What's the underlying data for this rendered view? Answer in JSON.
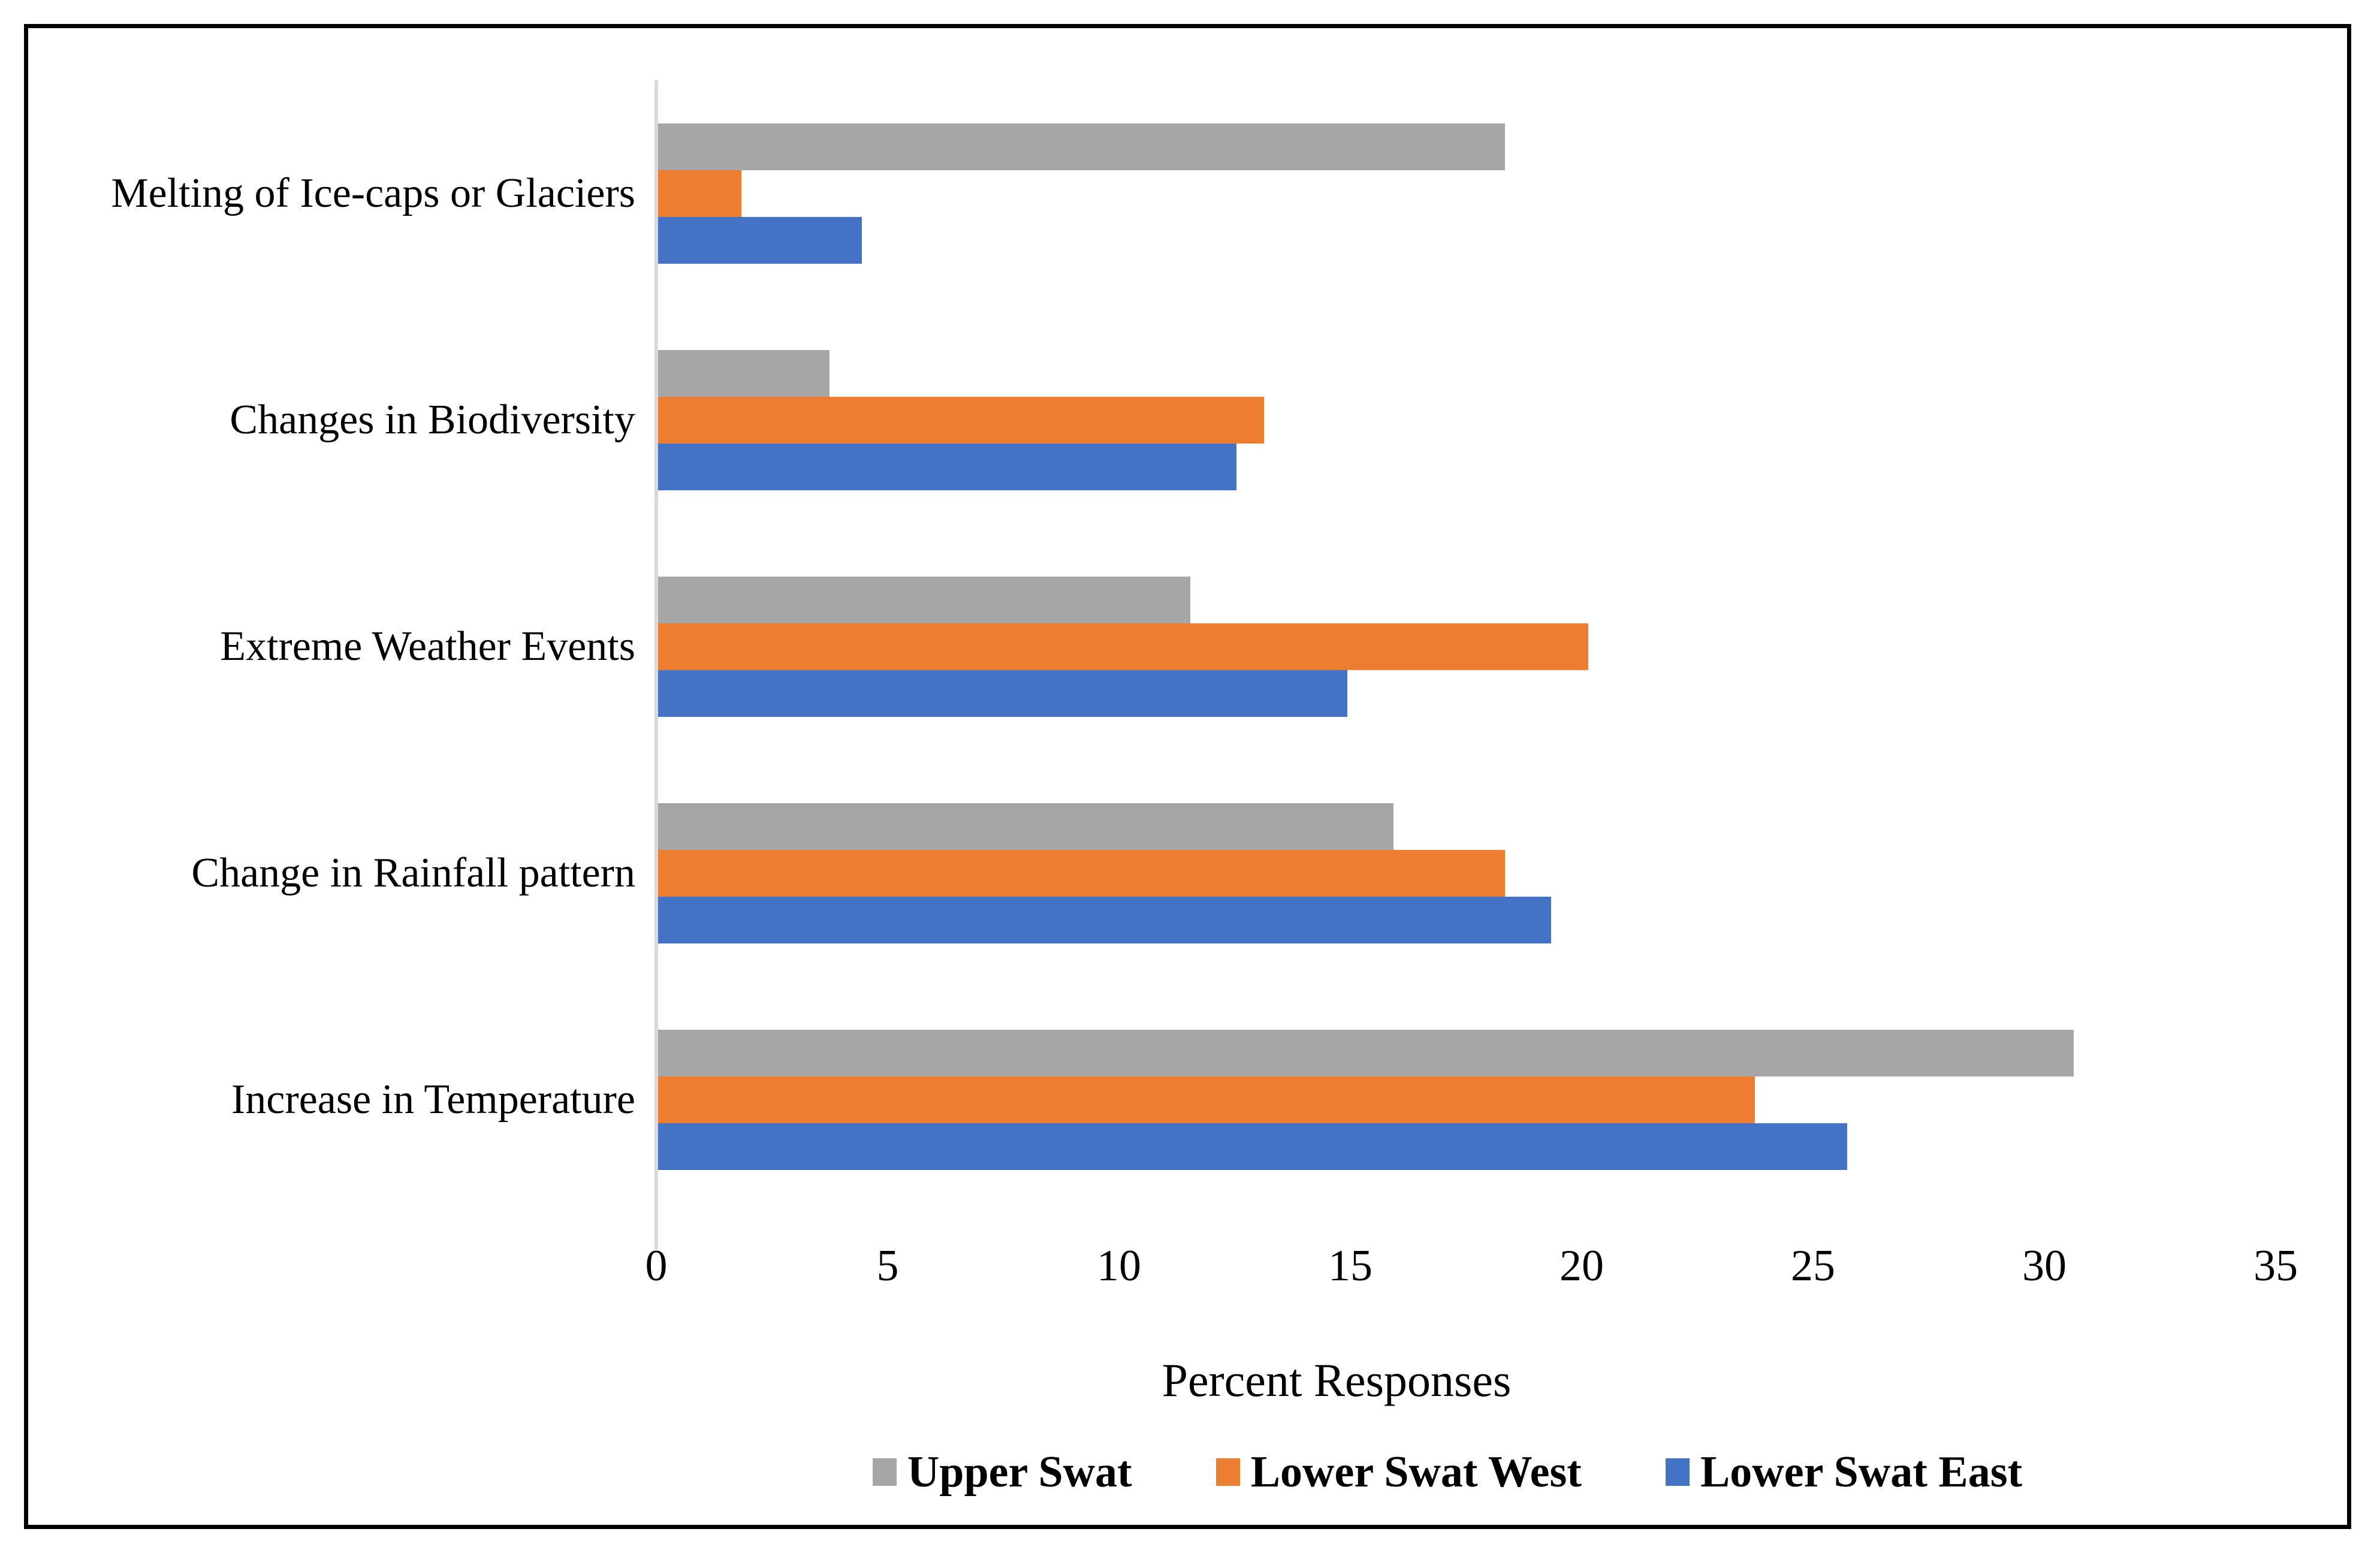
{
  "chart_data": {
    "type": "bar",
    "orientation": "horizontal",
    "title": "",
    "xlabel": "Percent Responses",
    "ylabel": "",
    "xlim": [
      0,
      35
    ],
    "xticks": [
      0,
      5,
      10,
      15,
      20,
      25,
      30,
      35
    ],
    "grid": false,
    "legend_position": "bottom",
    "category_order": "top-to-bottom",
    "categories": [
      "Melting of Ice-caps or Glaciers",
      "Changes in Biodiversity",
      "Extreme Weather Events",
      "Change in Rainfall pattern",
      "Increase in Temperature"
    ],
    "series": [
      {
        "name": "Upper Swat",
        "color": "#a6a6a6",
        "values": [
          18.3,
          3.7,
          11.5,
          15.9,
          30.6
        ]
      },
      {
        "name": "Lower Swat West",
        "color": "#ed7d31",
        "values": [
          1.8,
          13.1,
          20.1,
          18.3,
          23.7
        ]
      },
      {
        "name": "Lower Swat East",
        "color": "#4472c4",
        "values": [
          4.4,
          12.5,
          14.9,
          19.3,
          25.7
        ]
      }
    ]
  },
  "colors": {
    "axis_line": "#d9d9d9",
    "frame_border": "#000000",
    "background": "#ffffff",
    "text": "#000000"
  }
}
